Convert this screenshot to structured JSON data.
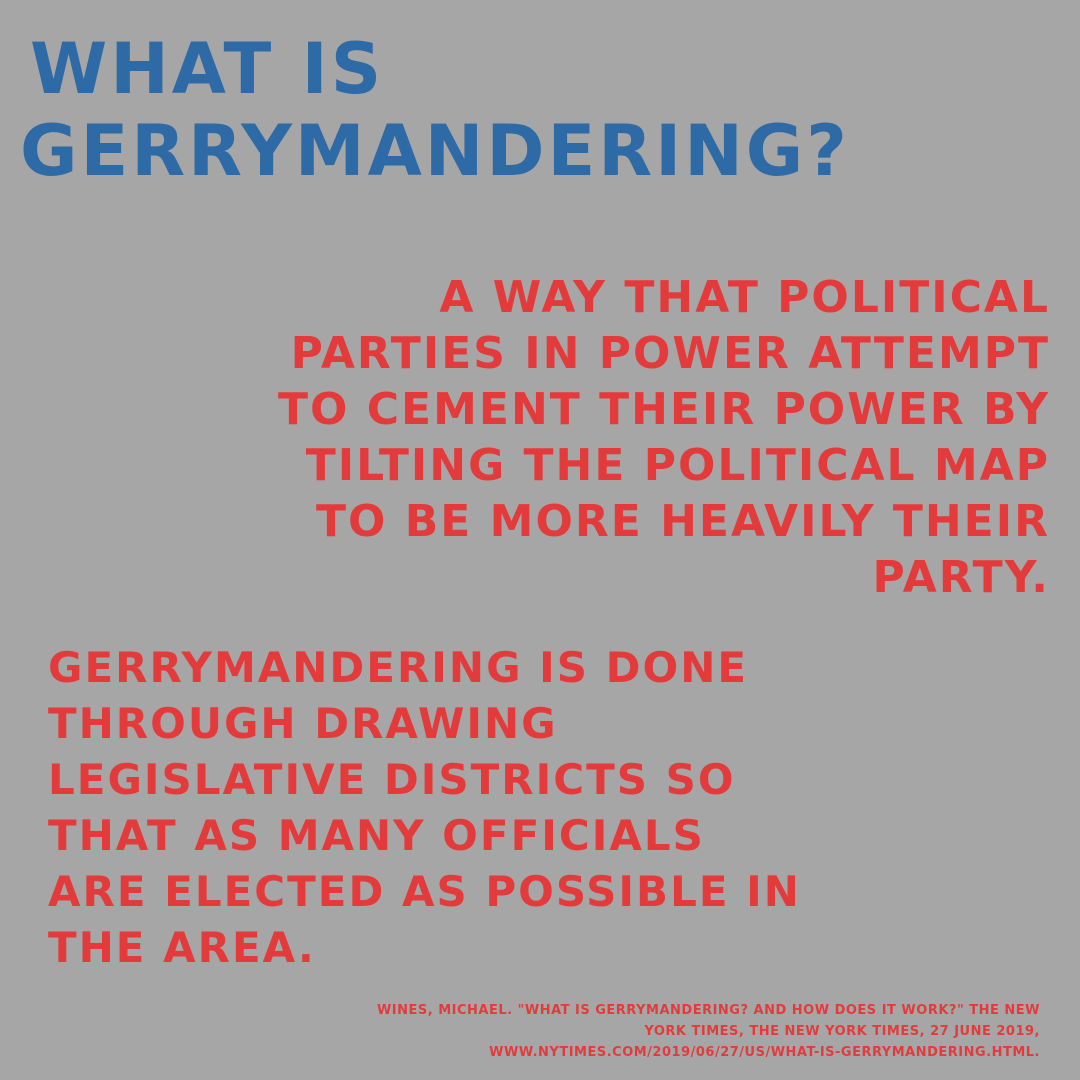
{
  "title": {
    "line1": "WHAT IS",
    "line2": "GERRYMANDERING?"
  },
  "definition": {
    "lines": [
      "A WAY THAT POLITICAL",
      "PARTIES IN POWER ATTEMPT",
      "TO CEMENT THEIR POWER BY",
      "TILTING THE POLITICAL MAP",
      "TO BE MORE HEAVILY THEIR",
      "PARTY."
    ]
  },
  "explanation": {
    "lines": [
      "GERRYMANDERING IS DONE",
      "THROUGH DRAWING",
      "LEGISLATIVE DISTRICTS SO",
      "THAT AS MANY OFFICIALS",
      "ARE ELECTED AS POSSIBLE IN",
      "THE AREA."
    ]
  },
  "citation": {
    "lines": [
      "WINES, MICHAEL. \"WHAT IS GERRYMANDERING? AND HOW DOES IT WORK?\" THE NEW",
      "YORK TIMES, THE NEW YORK TIMES, 27 JUNE 2019,",
      "WWW.NYTIMES.COM/2019/06/27/US/WHAT-IS-GERRYMANDERING.HTML."
    ]
  },
  "colors": {
    "background": "#a6a6a6",
    "title": "#2e6aa6",
    "body_text": "#e33b3b"
  }
}
